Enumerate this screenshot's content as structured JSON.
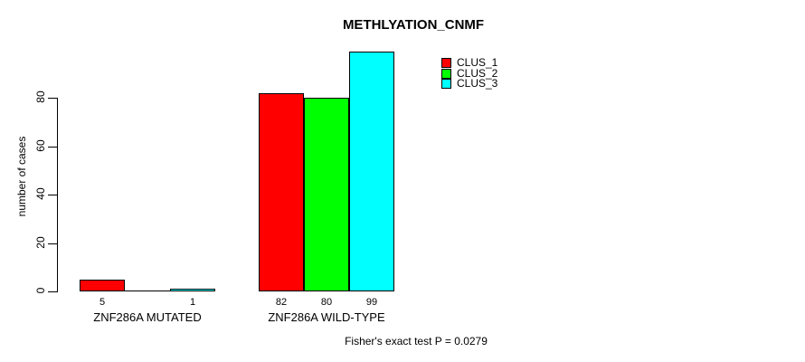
{
  "chart_data": {
    "type": "bar",
    "title": "METHLYATION_CNMF",
    "xlabel": "",
    "ylabel": "number of cases",
    "categories": [
      "ZNF286A MUTATED",
      "ZNF286A WILD-TYPE"
    ],
    "series": [
      {
        "name": "CLUS_1",
        "color": "#FF0000",
        "values": [
          5,
          82
        ]
      },
      {
        "name": "CLUS_2",
        "color": "#00FF00",
        "values": [
          0,
          80
        ]
      },
      {
        "name": "CLUS_3",
        "color": "#00FFFF",
        "values": [
          1,
          99
        ]
      }
    ],
    "value_labels": [
      [
        "5",
        "",
        "1"
      ],
      [
        "82",
        "80",
        "99"
      ]
    ],
    "ylim": [
      0,
      80
    ],
    "yticks": [
      "0",
      "20",
      "40",
      "60",
      "80"
    ],
    "grid": false,
    "legend_position": "top-right",
    "annotation": "Fisher's exact test P = 0.0279",
    "axis_color": "#000000",
    "background_color": "#FFFFFF"
  }
}
